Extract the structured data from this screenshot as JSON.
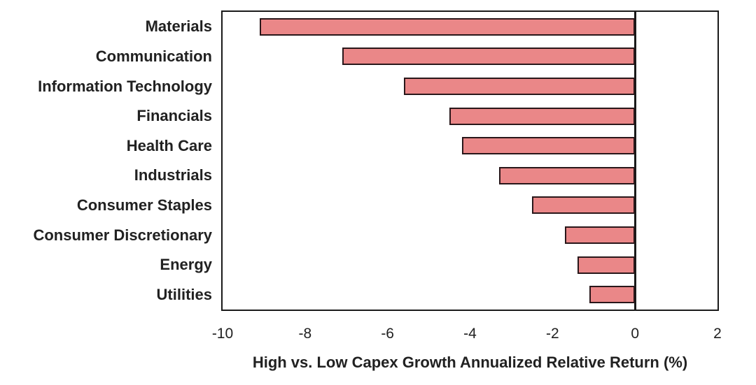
{
  "chart_data": {
    "type": "bar",
    "orientation": "horizontal",
    "categories": [
      "Materials",
      "Communication",
      "Information Technology",
      "Financials",
      "Health Care",
      "Industrials",
      "Consumer Staples",
      "Consumer Discretionary",
      "Energy",
      "Utilities"
    ],
    "values": [
      -9.1,
      -7.1,
      -5.6,
      -4.5,
      -4.2,
      -3.3,
      -2.5,
      -1.7,
      -1.4,
      -1.1
    ],
    "xlabel": "High vs. Low Capex Growth Annualized Relative Return (%)",
    "xlim": [
      -10,
      2
    ],
    "xticks": [
      -10,
      -8,
      -6,
      -4,
      -2,
      0,
      2
    ],
    "grid": false,
    "legend": "none",
    "colors": {
      "bar_fill": "#EA8788",
      "bar_border": "#29171A",
      "axis": "#1A1A1A",
      "text": "#212121",
      "background": "#FFFFFF"
    }
  }
}
